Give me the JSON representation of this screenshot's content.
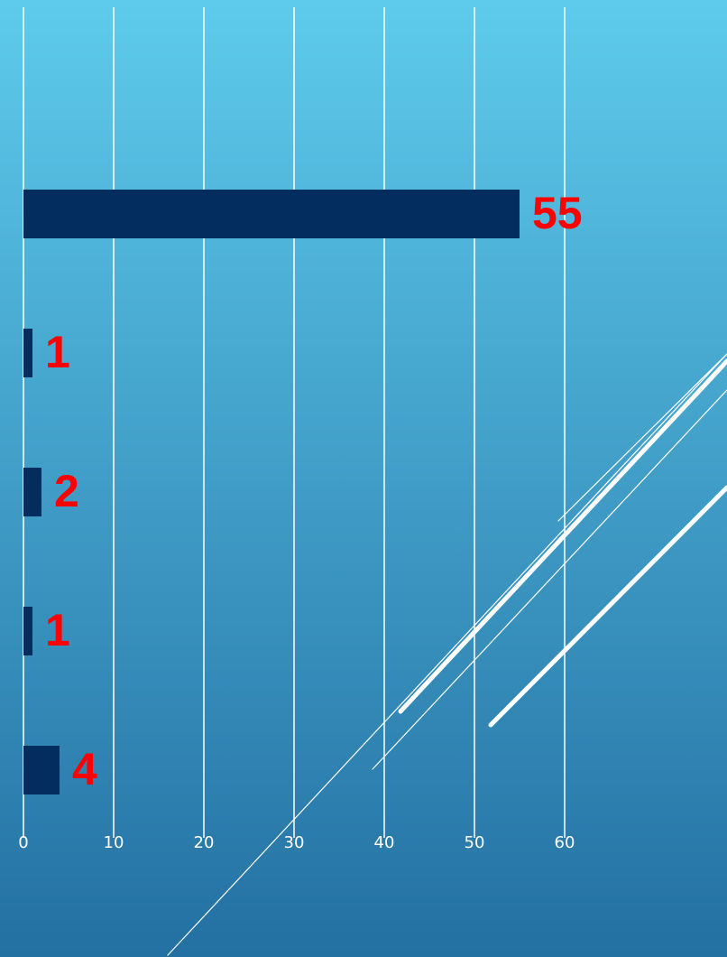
{
  "chart_data": {
    "type": "hbar",
    "categories": [
      null,
      null,
      null,
      null,
      null
    ],
    "values": [
      55,
      1,
      2,
      1,
      4
    ],
    "color": "#032d5e",
    "label_color": "#ff0000",
    "xlim": [
      0,
      60
    ],
    "xticks": [
      0,
      10,
      20,
      30,
      40,
      50,
      60
    ],
    "grid": true
  }
}
